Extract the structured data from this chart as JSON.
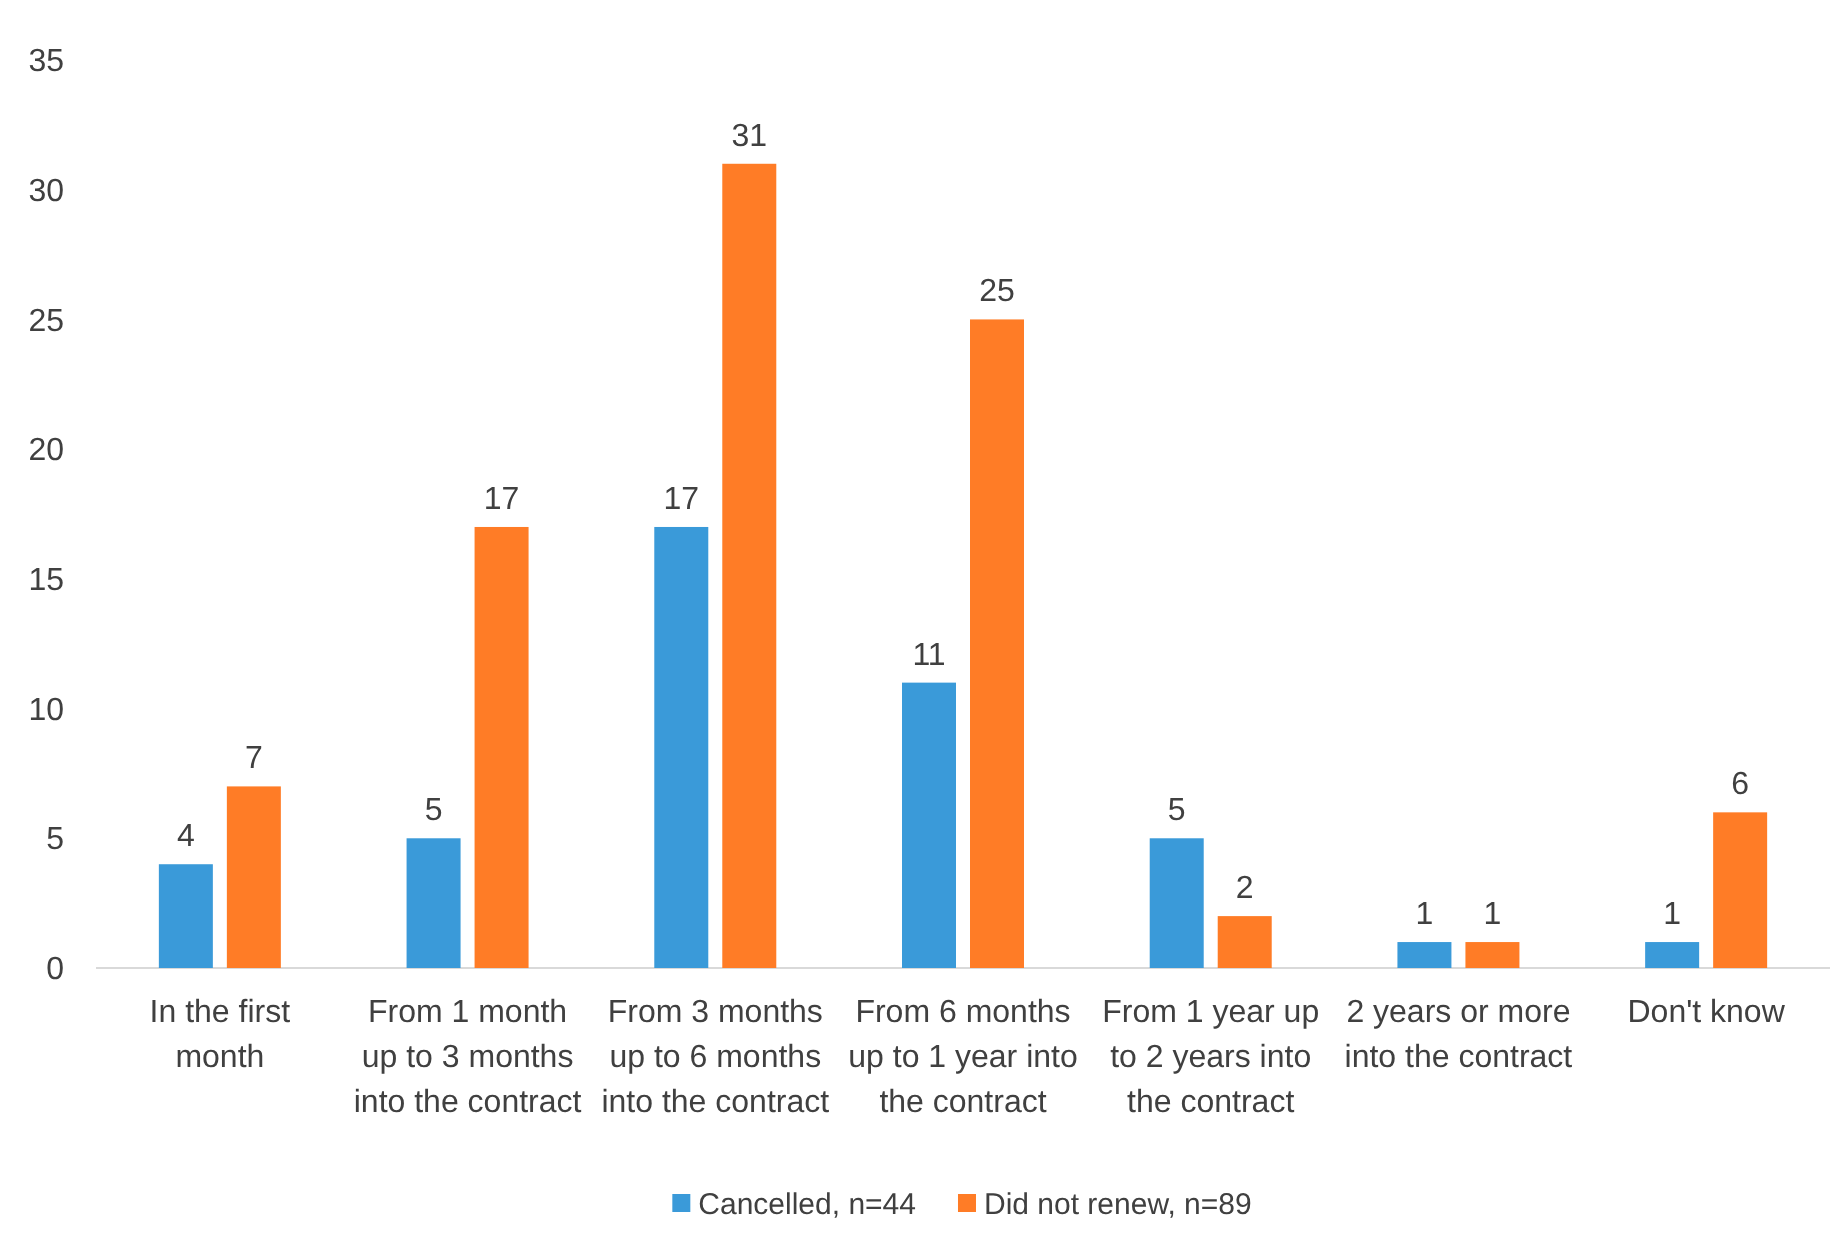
{
  "chart_data": {
    "type": "bar",
    "categories": [
      "In the first month",
      "From 1 month up to 3 months into the contract",
      "From 3 months up to 6 months into the contract",
      "From 6 months up to 1 year into the contract",
      "From 1 year up to 2 years into the contract",
      "2 years or more into the contract",
      "Don't know"
    ],
    "series": [
      {
        "name": "Cancelled, n=44",
        "color": "#3a9ad9",
        "values": [
          4,
          5,
          17,
          11,
          5,
          1,
          1
        ]
      },
      {
        "name": "Did not renew, n=89",
        "color": "#ff7c26",
        "values": [
          7,
          17,
          31,
          25,
          2,
          1,
          6
        ]
      }
    ],
    "ylim": [
      0,
      35
    ],
    "yticks": [
      0,
      5,
      10,
      15,
      20,
      25,
      30,
      35
    ],
    "grid": false,
    "legend": "bottom",
    "data_labels": true
  }
}
